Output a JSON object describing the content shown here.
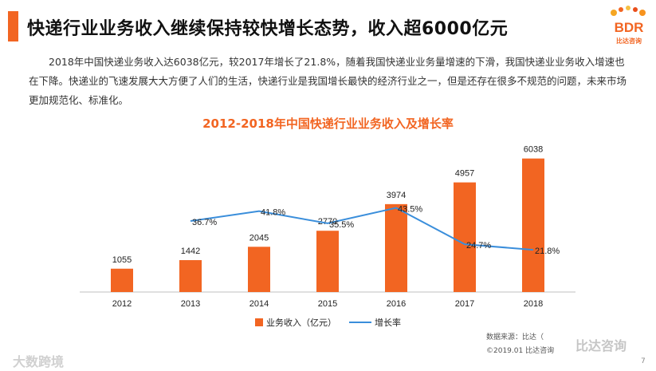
{
  "title": "快递行业业务收入继续保持较快增长态势，收入超6000亿元",
  "logo": {
    "letters": "BDR",
    "subtitle": "比达咨询"
  },
  "intro": "2018年中国快递业务收入达6038亿元，较2017年增长了21.8%，随着我国快递业业务量增速的下滑，我国快递业业务收入增速也在下降。快递业的飞速发展大大方便了人们的生活，快递行业是我国增长最快的经济行业之一，但是还存在很多不规范的问题，未来市场更加规范化、标准化。",
  "source": {
    "line1": "数据来源：比达（",
    "line2": "©2019.01  比达咨询"
  },
  "page_number": "7",
  "watermarks": {
    "left": "大数跨境",
    "right": "比达咨询"
  },
  "colors": {
    "accent": "#f26522",
    "line": "#3a8edb"
  },
  "chart_data": {
    "type": "bar",
    "title": "2012-2018年中国快递行业业务收入及增长率",
    "categories": [
      "2012",
      "2013",
      "2014",
      "2015",
      "2016",
      "2017",
      "2018"
    ],
    "series": [
      {
        "name": "业务收入（亿元）",
        "type": "bar",
        "values": [
          1055,
          1442,
          2045,
          2770,
          3974,
          4957,
          6038
        ],
        "labels": [
          "1055",
          "1442",
          "2045",
          "2770",
          "3974",
          "4957",
          "6038"
        ]
      },
      {
        "name": "增长率",
        "type": "line",
        "values": [
          null,
          36.7,
          41.8,
          35.5,
          43.5,
          24.7,
          21.8
        ],
        "labels": [
          "",
          "36.7%",
          "41.8%",
          "35.5%",
          "43.5%",
          "24.7%",
          "21.8%"
        ]
      }
    ],
    "ylim": [
      0,
      7000
    ],
    "y2lim": [
      0,
      80
    ],
    "legend": "bottom-center"
  }
}
